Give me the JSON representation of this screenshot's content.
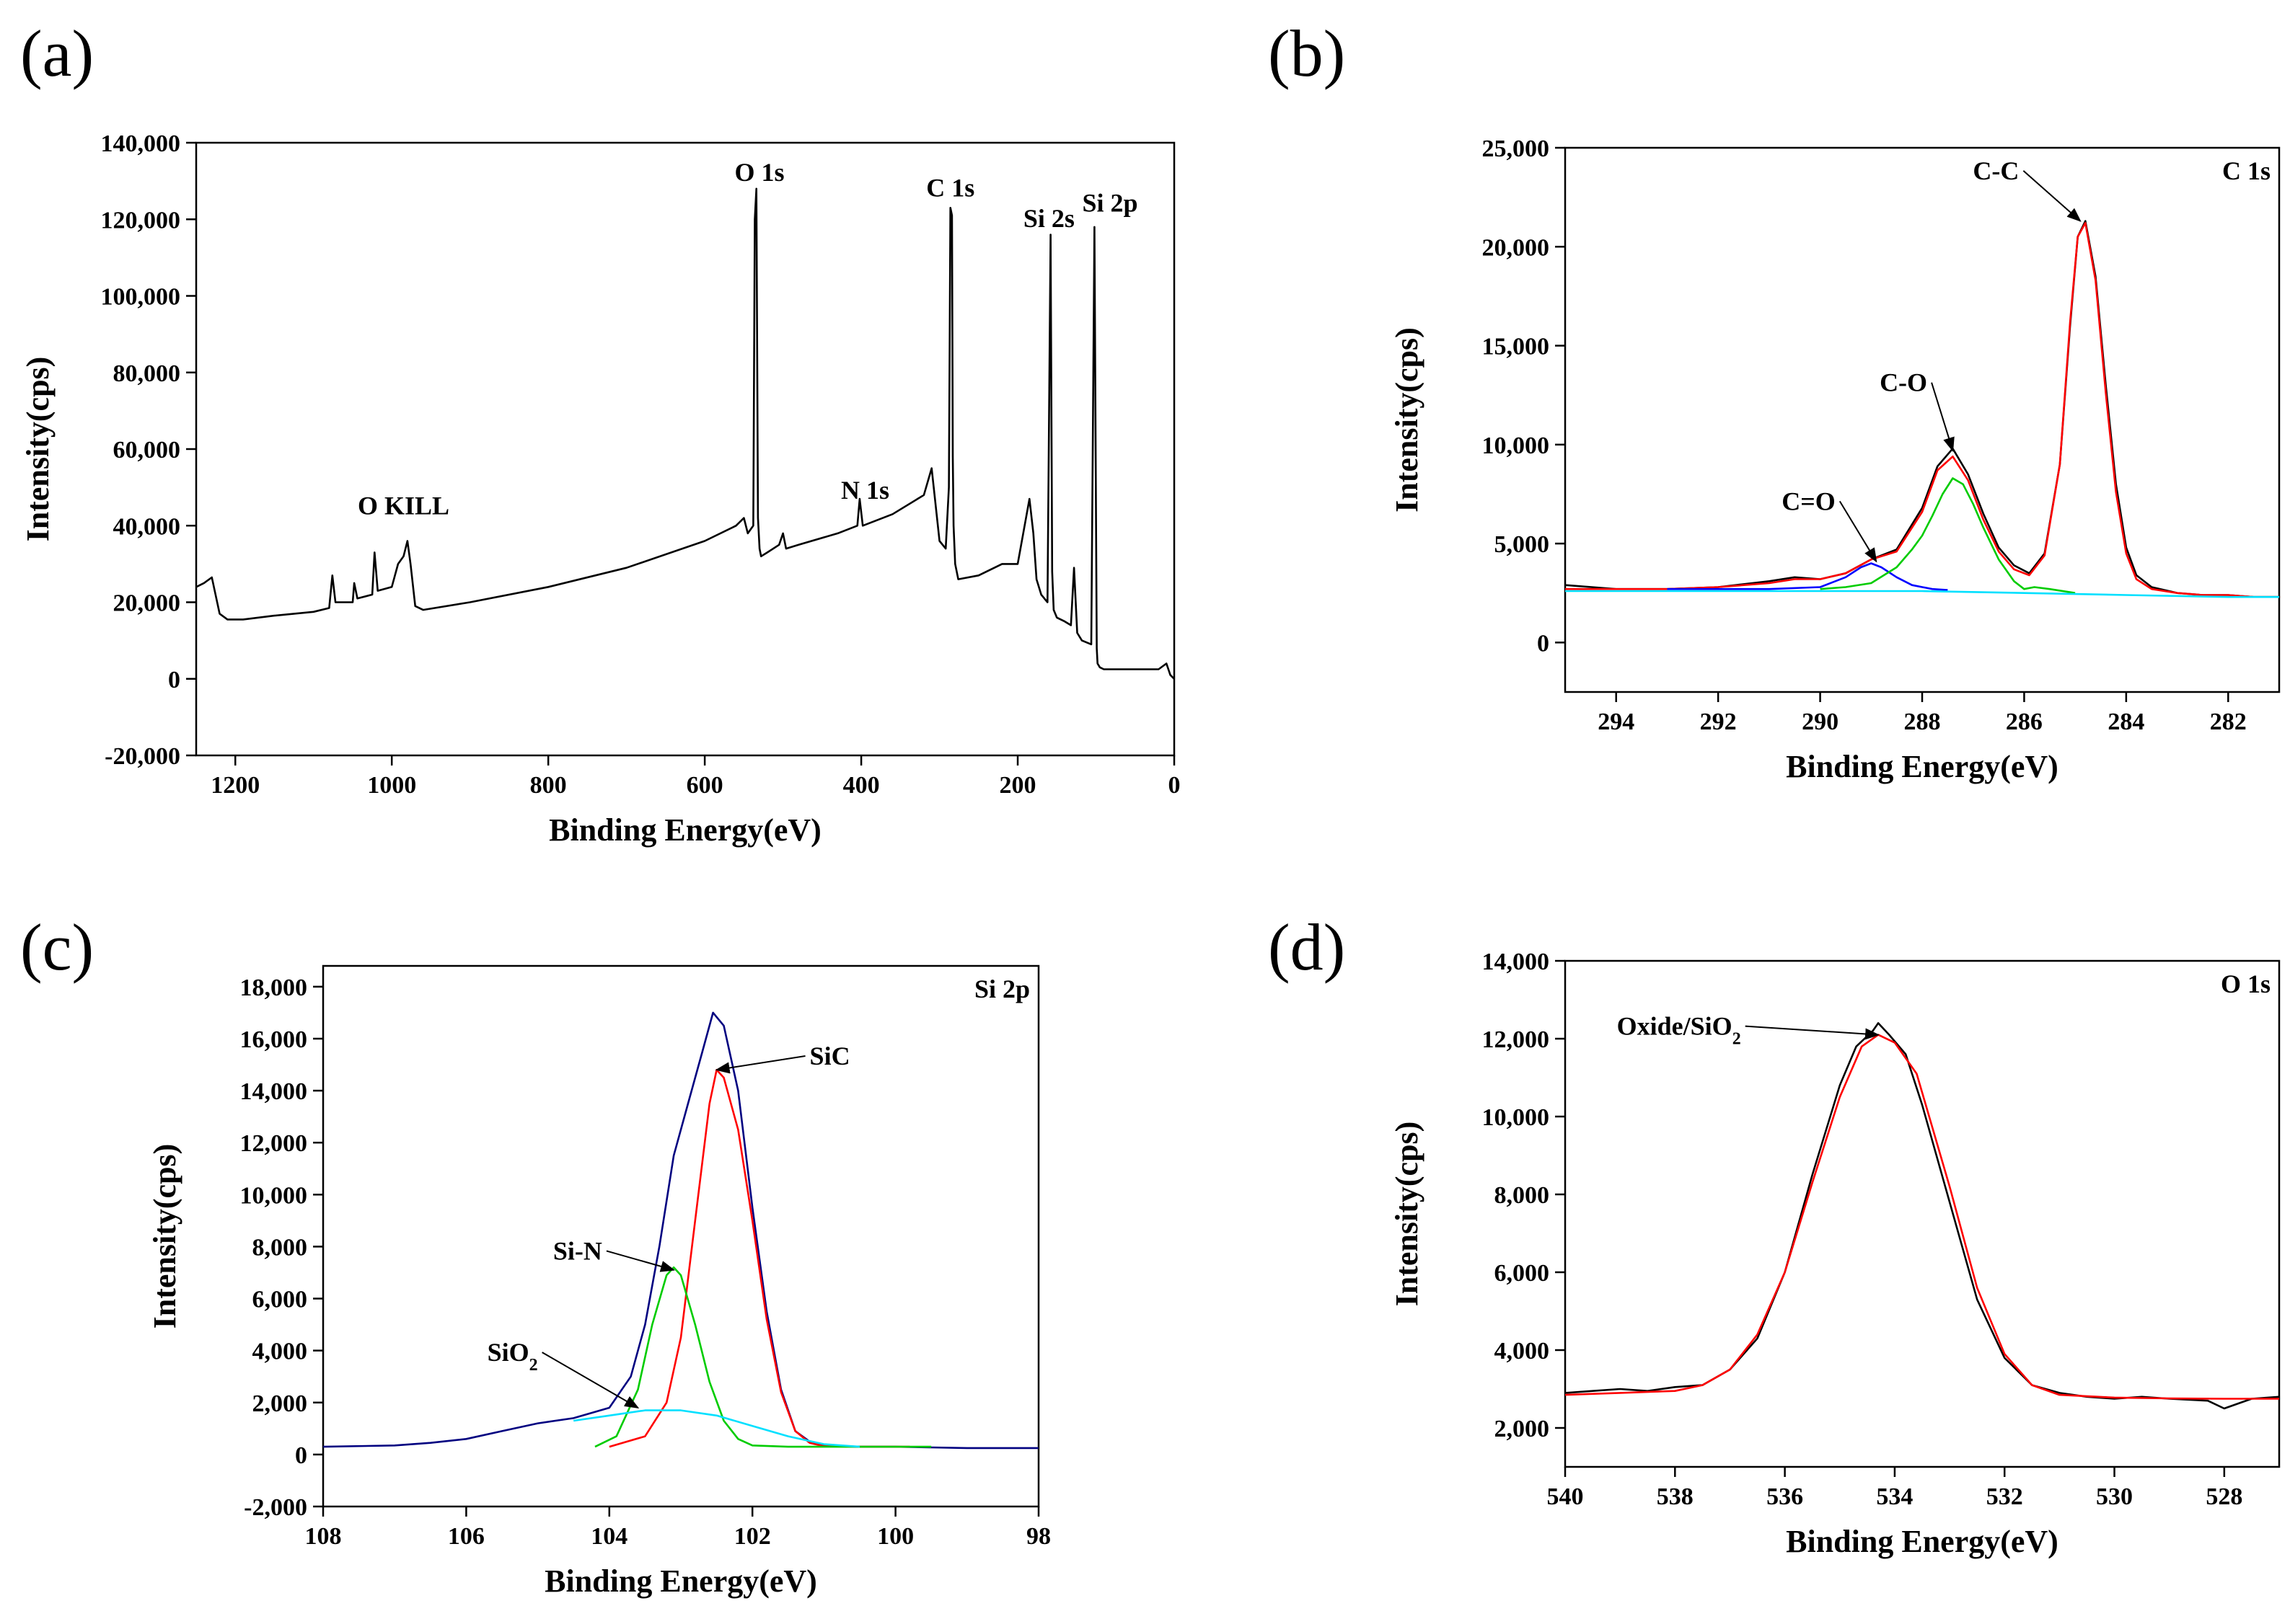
{
  "chart_data": [
    {
      "panel": "(a)",
      "type": "line",
      "xlabel": "Binding Energy(eV)",
      "ylabel": "Intensity(cps)",
      "xlim": [
        1250,
        0
      ],
      "ylim": [
        -20000,
        140000
      ],
      "x_ticks": [
        1200,
        1000,
        800,
        600,
        400,
        200,
        0
      ],
      "x_tick_labels": [
        "1200",
        "1000",
        "800",
        "600",
        "400",
        "200",
        "0"
      ],
      "y_ticks": [
        -20000,
        0,
        20000,
        40000,
        60000,
        80000,
        100000,
        120000,
        140000
      ],
      "y_tick_labels": [
        "-20,000",
        "0",
        "20,000",
        "40,000",
        "60,000",
        "80,000",
        "100,000",
        "120,000",
        "140,000"
      ],
      "corner_label": "",
      "annotations": [
        {
          "text": "O KILL",
          "x": 985,
          "y": 43000
        },
        {
          "text": "N 1s",
          "x": 395,
          "y": 47000
        },
        {
          "text": "O 1s",
          "x": 530,
          "y": 130000
        },
        {
          "text": "C 1s",
          "x": 286,
          "y": 126000
        },
        {
          "text": "Si 2s",
          "x": 160,
          "y": 118000
        },
        {
          "text": "Si 2p",
          "x": 82,
          "y": 122000
        }
      ],
      "series": [
        {
          "color": "#000000",
          "x": [
            1250,
            1240,
            1230,
            1220,
            1210,
            1190,
            1150,
            1100,
            1080,
            1076,
            1072,
            1050,
            1048,
            1044,
            1025,
            1022,
            1018,
            1000,
            992,
            985,
            980,
            976,
            970,
            960,
            900,
            800,
            700,
            600,
            560,
            550,
            545,
            538,
            536,
            534,
            532,
            530,
            528,
            520,
            505,
            500,
            496,
            480,
            430,
            405,
            402,
            398,
            360,
            320,
            310,
            300,
            292,
            288,
            286,
            284,
            283,
            282,
            280,
            276,
            250,
            220,
            200,
            185,
            180,
            176,
            170,
            162,
            158,
            156,
            154,
            150,
            140,
            132,
            128,
            124,
            118,
            106,
            102,
            100,
            99,
            98,
            95,
            90,
            60,
            20,
            10,
            5,
            0
          ],
          "y": [
            24000,
            25000,
            26500,
            17000,
            15500,
            15500,
            16500,
            17500,
            18500,
            27000,
            20000,
            20000,
            25000,
            21000,
            22000,
            33000,
            23000,
            24000,
            30000,
            32000,
            36000,
            30000,
            19000,
            18000,
            20000,
            24000,
            29000,
            36000,
            40000,
            42000,
            38000,
            40000,
            120000,
            128000,
            42000,
            34000,
            32000,
            33000,
            35000,
            38000,
            34000,
            35000,
            38000,
            40000,
            47000,
            40000,
            43000,
            48000,
            55000,
            36000,
            34000,
            50000,
            123000,
            121000,
            58000,
            40000,
            30000,
            26000,
            27000,
            30000,
            30000,
            47000,
            38000,
            26000,
            22000,
            20000,
            116000,
            28000,
            18000,
            16000,
            15000,
            14000,
            29000,
            12000,
            10000,
            9000,
            118000,
            45000,
            8000,
            4000,
            3000,
            2500,
            2500,
            2500,
            4000,
            1000,
            0
          ]
        }
      ]
    },
    {
      "panel": "(b)",
      "type": "line",
      "xlabel": "Binding Energy(eV)",
      "ylabel": "Intensity(cps)",
      "xlim": [
        295,
        281
      ],
      "ylim": [
        -2500,
        25000
      ],
      "x_ticks": [
        294,
        292,
        290,
        288,
        286,
        284,
        282
      ],
      "x_tick_labels": [
        "294",
        "292",
        "290",
        "288",
        "286",
        "284",
        "282"
      ],
      "y_ticks": [
        0,
        5000,
        10000,
        15000,
        20000,
        25000
      ],
      "y_tick_labels": [
        "0",
        "5,000",
        "10,000",
        "15,000",
        "20,000",
        "25,000"
      ],
      "corner_label": "C 1s",
      "annotations": [
        {
          "text": "C-C",
          "x": 286.1,
          "y": 23400,
          "arrow_to": [
            284.9,
            21300
          ]
        },
        {
          "text": "C-O",
          "x": 287.9,
          "y": 12700,
          "arrow_to": [
            287.4,
            9700
          ]
        },
        {
          "text": "C=O",
          "x": 289.7,
          "y": 6700,
          "arrow_to": [
            288.9,
            4100
          ]
        }
      ],
      "series": [
        {
          "color": "#000000",
          "x": [
            295,
            294,
            293,
            292,
            291,
            290.5,
            290,
            289.5,
            289,
            288.5,
            288,
            287.7,
            287.4,
            287.1,
            286.8,
            286.5,
            286.2,
            285.9,
            285.6,
            285.3,
            285.1,
            284.95,
            284.8,
            284.6,
            284.4,
            284.2,
            284,
            283.8,
            283.5,
            283,
            282.5,
            282,
            281.5,
            281
          ],
          "y": [
            2900,
            2700,
            2700,
            2800,
            3100,
            3300,
            3200,
            3500,
            4200,
            4700,
            6800,
            8900,
            9800,
            8500,
            6500,
            4800,
            3900,
            3500,
            4500,
            9000,
            16000,
            20500,
            21300,
            18500,
            13000,
            8000,
            4800,
            3400,
            2800,
            2500,
            2400,
            2400,
            2300,
            2300
          ]
        },
        {
          "color": "#ff0000",
          "x": [
            295,
            294,
            293,
            292,
            291,
            290.5,
            290,
            289.5,
            289,
            288.5,
            288,
            287.7,
            287.4,
            287.1,
            286.8,
            286.5,
            286.2,
            285.9,
            285.6,
            285.3,
            285.1,
            284.95,
            284.8,
            284.6,
            284.4,
            284.2,
            284,
            283.8,
            283.5,
            283,
            282.5,
            282,
            281.5,
            281
          ],
          "y": [
            2700,
            2700,
            2700,
            2800,
            3000,
            3200,
            3200,
            3500,
            4200,
            4600,
            6600,
            8700,
            9400,
            8200,
            6200,
            4600,
            3700,
            3400,
            4400,
            9000,
            16200,
            20500,
            21200,
            18300,
            12600,
            7600,
            4500,
            3200,
            2700,
            2500,
            2400,
            2400,
            2300,
            2300
          ]
        },
        {
          "color": "#0000ff",
          "x": [
            293,
            291,
            290,
            289.5,
            289.2,
            289,
            288.8,
            288.5,
            288.2,
            287.8,
            287.5
          ],
          "y": [
            2700,
            2700,
            2800,
            3300,
            3800,
            4000,
            3800,
            3300,
            2900,
            2700,
            2650
          ]
        },
        {
          "color": "#00cc00",
          "x": [
            290,
            289.5,
            289,
            288.5,
            288.2,
            288,
            287.8,
            287.6,
            287.4,
            287.2,
            287,
            286.8,
            286.5,
            286.2,
            286,
            285.8,
            285.5,
            285
          ],
          "y": [
            2700,
            2800,
            3000,
            3800,
            4700,
            5400,
            6400,
            7500,
            8300,
            8000,
            7000,
            5800,
            4200,
            3100,
            2700,
            2800,
            2700,
            2500
          ]
        },
        {
          "color": "#00e0ff",
          "x": [
            295,
            292,
            290,
            288,
            286,
            284,
            282,
            281
          ],
          "y": [
            2600,
            2600,
            2600,
            2600,
            2500,
            2400,
            2300,
            2300
          ]
        }
      ]
    },
    {
      "panel": "(c)",
      "type": "line",
      "xlabel": "Binding Energy(eV)",
      "ylabel": "Intensity(cps)",
      "xlim": [
        108,
        98
      ],
      "ylim": [
        -2000,
        18800
      ],
      "x_ticks": [
        108,
        106,
        104,
        102,
        100,
        98
      ],
      "x_tick_labels": [
        "108",
        "106",
        "104",
        "102",
        "100",
        "98"
      ],
      "y_ticks": [
        -2000,
        0,
        2000,
        4000,
        6000,
        8000,
        10000,
        12000,
        14000,
        16000,
        18000
      ],
      "y_tick_labels": [
        "-2,000",
        "0",
        "2,000",
        "4,000",
        "6,000",
        "8,000",
        "10,000",
        "12,000",
        "14,000",
        "16,000",
        "18,000"
      ],
      "corner_label": "Si 2p",
      "annotations": [
        {
          "text": "SiC",
          "x": 101.2,
          "y": 15000,
          "arrow_to": [
            102.5,
            14800
          ]
        },
        {
          "text": "Si-N",
          "x": 104.1,
          "y": 7500,
          "arrow_to": [
            103.1,
            7100
          ]
        },
        {
          "text": "SiO2",
          "x": 105.0,
          "y": 3600,
          "arrow_to": [
            103.6,
            1800
          ]
        }
      ],
      "series": [
        {
          "color": "#000080",
          "x": [
            108,
            107,
            106.5,
            106,
            105.5,
            105,
            104.5,
            104,
            103.7,
            103.5,
            103.3,
            103.1,
            102.9,
            102.7,
            102.55,
            102.4,
            102.2,
            102,
            101.8,
            101.6,
            101.4,
            101.2,
            101,
            100.5,
            100,
            99,
            98
          ],
          "y": [
            300,
            350,
            450,
            600,
            900,
            1200,
            1400,
            1800,
            3000,
            5000,
            8000,
            11500,
            13500,
            15500,
            17000,
            16500,
            14000,
            9500,
            5500,
            2500,
            900,
            500,
            350,
            300,
            300,
            250,
            250
          ]
        },
        {
          "color": "#ff0000",
          "x": [
            104,
            103.5,
            103.2,
            103,
            102.8,
            102.6,
            102.5,
            102.4,
            102.2,
            102,
            101.8,
            101.6,
            101.4,
            101.2,
            101,
            100.5,
            99.8
          ],
          "y": [
            300,
            700,
            2000,
            4500,
            9000,
            13500,
            14800,
            14500,
            12500,
            9000,
            5200,
            2400,
            900,
            450,
            320,
            300,
            300
          ]
        },
        {
          "color": "#00cc00",
          "x": [
            104.2,
            103.9,
            103.6,
            103.4,
            103.2,
            103.1,
            103,
            102.8,
            102.6,
            102.4,
            102.2,
            102,
            101.5,
            101,
            100,
            99.5
          ],
          "y": [
            300,
            700,
            2500,
            5000,
            6900,
            7200,
            6900,
            5000,
            2800,
            1300,
            600,
            350,
            300,
            300,
            300,
            300
          ]
        },
        {
          "color": "#00e0ff",
          "x": [
            104.5,
            104,
            103.5,
            103,
            102.5,
            102,
            101.5,
            101,
            100.5
          ],
          "y": [
            1300,
            1500,
            1700,
            1700,
            1500,
            1100,
            700,
            400,
            300
          ]
        }
      ]
    },
    {
      "panel": "(d)",
      "type": "line",
      "xlabel": "Binding Energy(eV)",
      "ylabel": "Intensity(cps)",
      "xlim": [
        540,
        527
      ],
      "ylim": [
        1000,
        14000
      ],
      "x_ticks": [
        540,
        538,
        536,
        534,
        532,
        530,
        528
      ],
      "x_tick_labels": [
        "540",
        "538",
        "536",
        "534",
        "532",
        "530",
        "528"
      ],
      "y_ticks": [
        2000,
        4000,
        6000,
        8000,
        10000,
        12000,
        14000
      ],
      "y_tick_labels": [
        "2,000",
        "4,000",
        "6,000",
        "8,000",
        "10,000",
        "12,000",
        "14,000"
      ],
      "corner_label": "O 1s",
      "annotations": [
        {
          "text": "Oxide/SiO2",
          "x": 536.8,
          "y": 12100,
          "arrow_to": [
            534.3,
            12100
          ]
        }
      ],
      "series": [
        {
          "color": "#000000",
          "x": [
            540,
            539.5,
            539,
            538.5,
            538,
            537.5,
            537,
            536.5,
            536,
            535.5,
            535,
            534.7,
            534.4,
            534.3,
            534.1,
            533.8,
            533.5,
            533,
            532.5,
            532,
            531.5,
            531,
            530.5,
            530,
            529.5,
            529,
            528.3,
            528,
            527.5,
            527
          ],
          "y": [
            2900,
            2950,
            3000,
            2950,
            3050,
            3100,
            3500,
            4300,
            6000,
            8500,
            10800,
            11800,
            12200,
            12400,
            12100,
            11600,
            10300,
            7800,
            5300,
            3800,
            3100,
            2900,
            2800,
            2750,
            2800,
            2750,
            2700,
            2500,
            2750,
            2800
          ]
        },
        {
          "color": "#ff0000",
          "x": [
            540,
            539,
            538,
            537.5,
            537,
            536.5,
            536,
            535.5,
            535,
            534.6,
            534.3,
            534,
            533.6,
            533,
            532.5,
            532,
            531.5,
            531,
            530,
            529,
            528,
            527
          ],
          "y": [
            2850,
            2900,
            2950,
            3100,
            3500,
            4400,
            6000,
            8300,
            10500,
            11800,
            12100,
            11900,
            11100,
            8200,
            5600,
            3900,
            3100,
            2850,
            2780,
            2760,
            2750,
            2750
          ]
        }
      ]
    }
  ]
}
